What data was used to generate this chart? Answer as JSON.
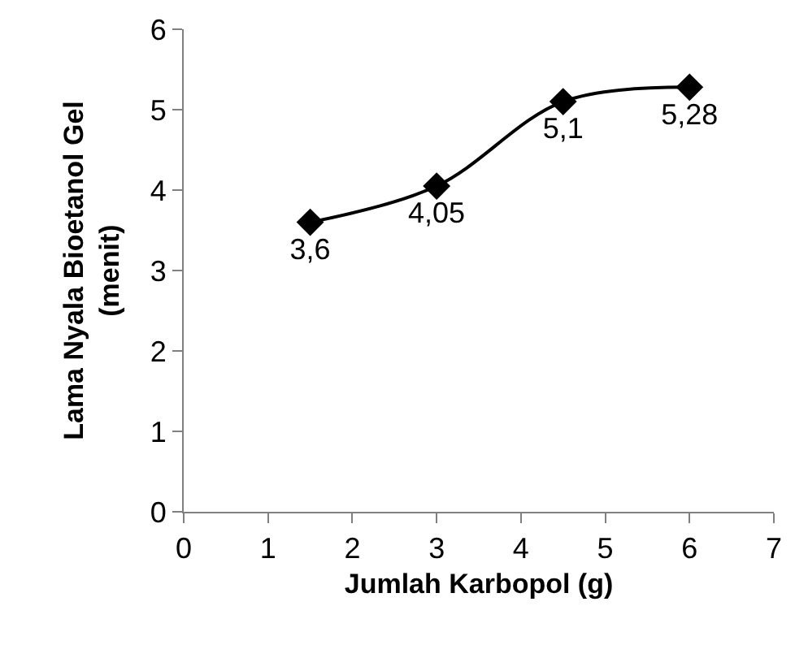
{
  "chart_data": {
    "type": "line",
    "xlabel": "Jumlah Karbopol (g)",
    "ylabel": "Lama Nyala Bioetanol Gel\n(menit)",
    "x": [
      1.5,
      3,
      4.5,
      6
    ],
    "series": [
      {
        "color": "#000000",
        "values": [
          3.6,
          4.05,
          5.1,
          5.28
        ],
        "value_labels": [
          "3,6",
          "4,05",
          "5,1",
          "5,28"
        ]
      }
    ],
    "xlim": [
      0,
      7
    ],
    "xticks": [
      0,
      1,
      2,
      3,
      4,
      5,
      6,
      7
    ],
    "ylim": [
      0,
      6
    ],
    "yticks": [
      0,
      1,
      2,
      3,
      4,
      5,
      6
    ],
    "marker": "diamond",
    "line_style": "solid"
  }
}
